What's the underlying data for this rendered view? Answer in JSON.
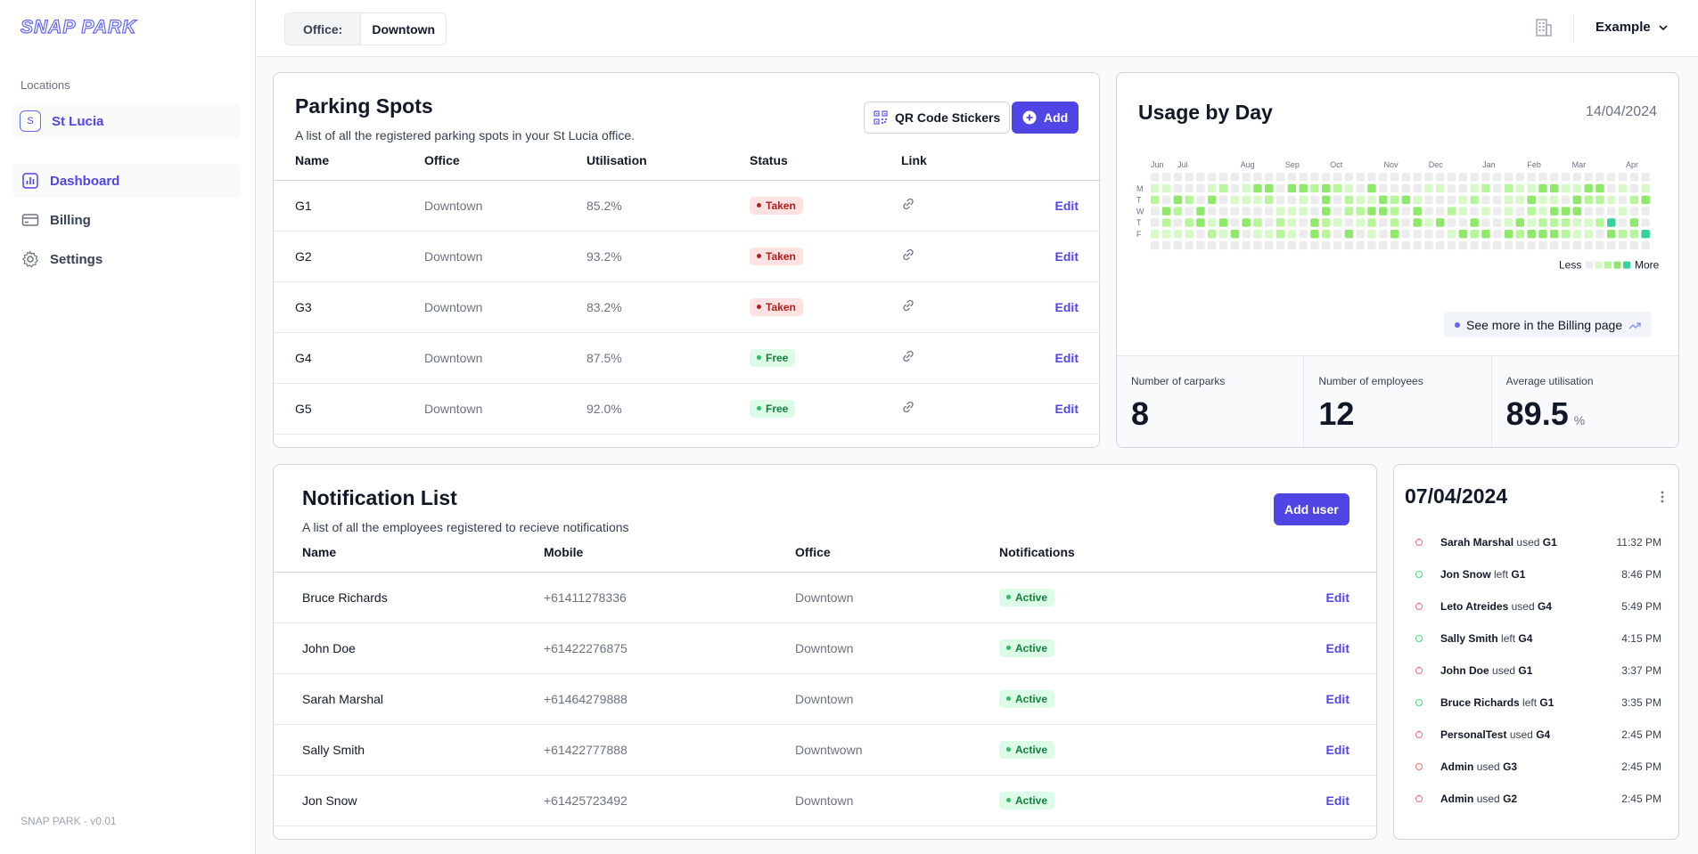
{
  "app": {
    "logo": "SNAP PARK",
    "version": "SNAP PARK - v0.01"
  },
  "sidebar": {
    "locations_title": "Locations",
    "location": {
      "badge": "S",
      "label": "St Lucia"
    },
    "nav": [
      {
        "label": "Dashboard",
        "icon": "chart-icon",
        "active": true
      },
      {
        "label": "Billing",
        "icon": "card-icon",
        "active": false
      },
      {
        "label": "Settings",
        "icon": "gear-icon",
        "active": false
      }
    ]
  },
  "topbar": {
    "office_label": "Office:",
    "office_value": "Downtown",
    "user": "Example"
  },
  "parking": {
    "title": "Parking Spots",
    "subtitle": "A list of all the registered parking spots in your St Lucia office.",
    "qr_label": "QR Code Stickers",
    "add_label": "Add",
    "columns": [
      "Name",
      "Office",
      "Utilisation",
      "Status",
      "Link"
    ],
    "edit_label": "Edit",
    "rows": [
      {
        "name": "G1",
        "office": "Downtown",
        "util": "85.2%",
        "status": "Taken"
      },
      {
        "name": "G2",
        "office": "Downtown",
        "util": "93.2%",
        "status": "Taken"
      },
      {
        "name": "G3",
        "office": "Downtown",
        "util": "83.2%",
        "status": "Taken"
      },
      {
        "name": "G4",
        "office": "Downtown",
        "util": "87.5%",
        "status": "Free"
      },
      {
        "name": "G5",
        "office": "Downtown",
        "util": "92.0%",
        "status": "Free"
      }
    ]
  },
  "usage": {
    "title": "Usage by Day",
    "date": "14/04/2024",
    "months": [
      "Jun",
      "Jul",
      "Aug",
      "Sep",
      "Oct",
      "Nov",
      "Dec",
      "Jan",
      "Feb",
      "Mar",
      "Apr"
    ],
    "days": [
      "M",
      "T",
      "W",
      "T",
      "F"
    ],
    "legend_less": "Less",
    "legend_more": "More",
    "billing_link": "See more in the Billing page",
    "stats": [
      {
        "label": "Number of carparks",
        "value": "8",
        "unit": ""
      },
      {
        "label": "Number of employees",
        "value": "12",
        "unit": ""
      },
      {
        "label": "Average utilisation",
        "value": "89.5",
        "unit": "%"
      }
    ]
  },
  "notifications": {
    "title": "Notification List",
    "subtitle": "A list of all the employees registered to recieve notifications",
    "add_label": "Add user",
    "columns": [
      "Name",
      "Mobile",
      "Office",
      "Notifications"
    ],
    "edit_label": "Edit",
    "rows": [
      {
        "name": "Bruce Richards",
        "mobile": "+61411278336",
        "office": "Downtown",
        "status": "Active"
      },
      {
        "name": "John Doe",
        "mobile": "+61422276875",
        "office": "Downtown",
        "status": "Active"
      },
      {
        "name": "Sarah Marshal",
        "mobile": "+61464279888",
        "office": "Downtown",
        "status": "Active"
      },
      {
        "name": "Sally Smith",
        "mobile": "+61422777888",
        "office": "Downtwown",
        "status": "Active"
      },
      {
        "name": "Jon Snow",
        "mobile": "+61425723492",
        "office": "Downtown",
        "status": "Active"
      }
    ]
  },
  "activity": {
    "date": "07/04/2024",
    "items": [
      {
        "user": "Sarah Marshal",
        "action": "used",
        "spot": "G1",
        "time": "11:32 PM",
        "color": "red"
      },
      {
        "user": "Jon Snow",
        "action": "left",
        "spot": "G1",
        "time": "8:46 PM",
        "color": "green"
      },
      {
        "user": "Leto Atreides",
        "action": "used",
        "spot": "G4",
        "time": "5:49 PM",
        "color": "red"
      },
      {
        "user": "Sally Smith",
        "action": "left",
        "spot": "G4",
        "time": "4:15 PM",
        "color": "green"
      },
      {
        "user": "John Doe",
        "action": "used",
        "spot": "G1",
        "time": "3:37 PM",
        "color": "red"
      },
      {
        "user": "Bruce Richards",
        "action": "left",
        "spot": "G1",
        "time": "3:35 PM",
        "color": "green"
      },
      {
        "user": "PersonalTest",
        "action": "used",
        "spot": "G4",
        "time": "2:45 PM",
        "color": "red"
      },
      {
        "user": "Admin",
        "action": "used",
        "spot": "G3",
        "time": "2:45 PM",
        "color": "red"
      },
      {
        "user": "Admin",
        "action": "used",
        "spot": "G2",
        "time": "2:45 PM",
        "color": "red"
      }
    ]
  },
  "colors": {
    "accent": "#4f46e5",
    "heat": [
      "#ececec",
      "#d7f8c7",
      "#b7f59a",
      "#8ee86a",
      "#34d399"
    ]
  }
}
